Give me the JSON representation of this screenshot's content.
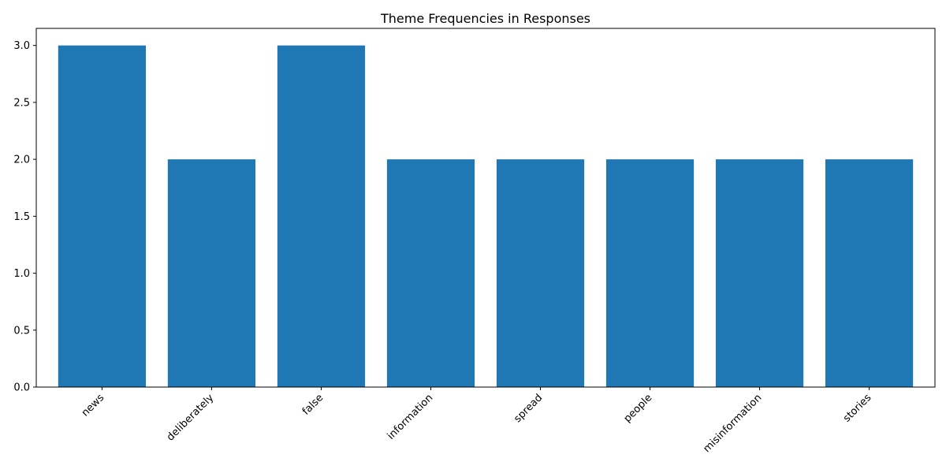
{
  "chart_data": {
    "type": "bar",
    "title": "Theme Frequencies in Responses",
    "xlabel": "",
    "ylabel": "",
    "categories": [
      "news",
      "deliberately",
      "false",
      "information",
      "spread",
      "people",
      "misinformation",
      "stories"
    ],
    "values": [
      3,
      2,
      3,
      2,
      2,
      2,
      2,
      2
    ],
    "ylim": [
      0,
      3.15
    ],
    "yticks": [
      0.0,
      0.5,
      1.0,
      1.5,
      2.0,
      2.5,
      3.0
    ],
    "ytick_labels": [
      "0.0",
      "0.5",
      "1.0",
      "1.5",
      "2.0",
      "2.5",
      "3.0"
    ],
    "bar_color": "#1f77b4",
    "grid": false,
    "legend": "none"
  }
}
